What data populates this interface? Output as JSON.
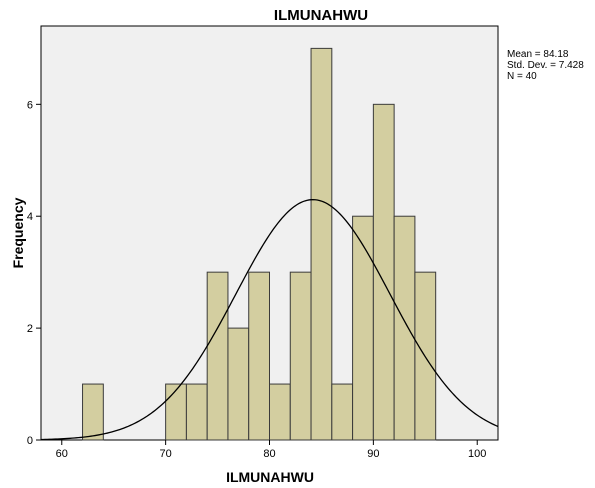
{
  "chart_data": {
    "type": "bar",
    "subtype": "histogram",
    "title": "ILMUNAHWU",
    "xlabel": "ILMUNAHWU",
    "ylabel": "Frequency",
    "xlim": [
      58,
      102
    ],
    "ylim": [
      0,
      7.4
    ],
    "xticks": [
      60,
      70,
      80,
      90,
      100
    ],
    "yticks": [
      0,
      2,
      4,
      6
    ],
    "bin_width": 2,
    "bins": [
      {
        "start": 62,
        "end": 64,
        "count": 1
      },
      {
        "start": 70,
        "end": 72,
        "count": 1
      },
      {
        "start": 72,
        "end": 74,
        "count": 1
      },
      {
        "start": 74,
        "end": 76,
        "count": 3
      },
      {
        "start": 76,
        "end": 78,
        "count": 2
      },
      {
        "start": 78,
        "end": 80,
        "count": 3
      },
      {
        "start": 80,
        "end": 82,
        "count": 1
      },
      {
        "start": 82,
        "end": 84,
        "count": 3
      },
      {
        "start": 84,
        "end": 86,
        "count": 7
      },
      {
        "start": 86,
        "end": 88,
        "count": 1
      },
      {
        "start": 88,
        "end": 90,
        "count": 4
      },
      {
        "start": 90,
        "end": 92,
        "count": 6
      },
      {
        "start": 92,
        "end": 94,
        "count": 4
      },
      {
        "start": 94,
        "end": 96,
        "count": 3
      }
    ],
    "normal_curve": {
      "mean": 84.18,
      "std": 7.428,
      "n": 40
    },
    "stats": [
      "Mean = 84.18",
      "Std. Dev. = 7.428",
      "N = 40"
    ],
    "colors": {
      "bar_fill": "#d3cea0",
      "bar_stroke": "#3a3a3a",
      "plot_background": "#f0f0f0",
      "curve": "#000000"
    },
    "grid": false
  }
}
